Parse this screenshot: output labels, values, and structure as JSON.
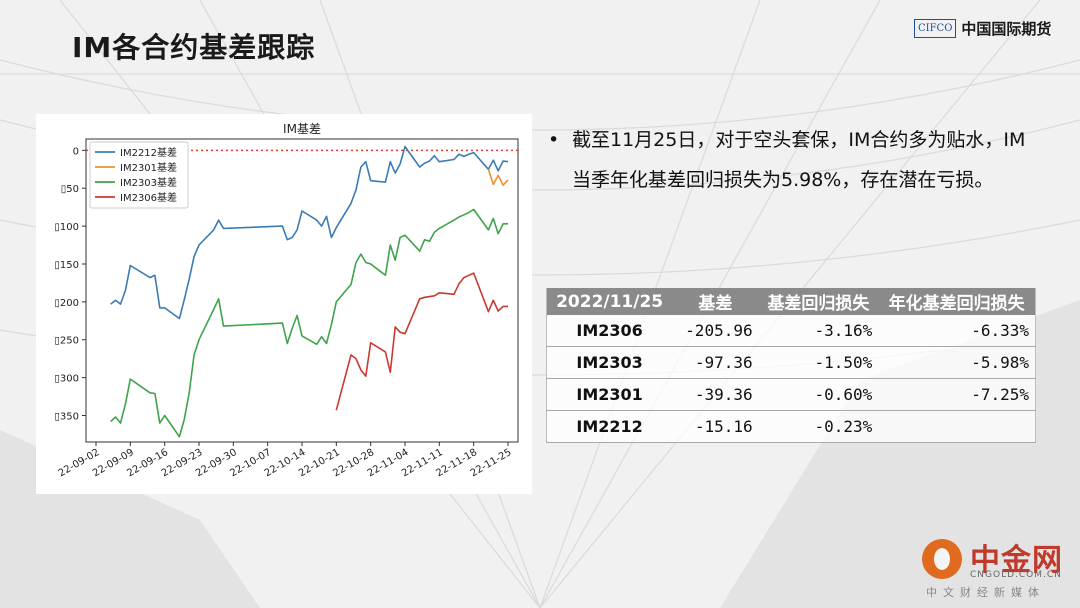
{
  "slide": {
    "title": "IM各合约基差跟踪",
    "logo_box": "CIFCO",
    "logo_text": "中国国际期货",
    "bullet_text": "截至11月25日，对于空头套保，IM合约多为贴水，IM当季年化基差回归损失为5.98%，存在潜在亏损。",
    "bullet_marker": "•"
  },
  "table": {
    "headers": [
      "2022/11/25",
      "基差",
      "基差回归损失",
      "年化基差回归损失"
    ],
    "rows": [
      [
        "IM2306",
        "-205.96",
        "-3.16%",
        "-6.33%"
      ],
      [
        "IM2303",
        "-97.36",
        "-1.50%",
        "-5.98%"
      ],
      [
        "IM2301",
        "-39.36",
        "-0.60%",
        "-7.25%"
      ],
      [
        "IM2212",
        "-15.16",
        "-0.23%",
        ""
      ]
    ]
  },
  "watermark": {
    "title": "中金网",
    "url": "CNGOLD.COM.CN",
    "subtitle": "中文财经新媒体"
  },
  "chart_data": {
    "type": "line",
    "title": "IM基差",
    "xlabel": "",
    "ylabel": "",
    "ylim": [
      -385,
      15
    ],
    "yticks": [
      0,
      -50,
      -100,
      -150,
      -200,
      -250,
      -300,
      -350
    ],
    "ytick_labels": [
      "0",
      "▯50",
      "▯100",
      "▯150",
      "▯200",
      "▯250",
      "▯300",
      "▯350"
    ],
    "xticks": [
      "22-09-02",
      "22-09-09",
      "22-09-16",
      "22-09-23",
      "22-09-30",
      "22-10-07",
      "22-10-14",
      "22-10-21",
      "22-10-28",
      "22-11-04",
      "22-11-11",
      "22-11-18",
      "22-11-25"
    ],
    "xlim": [
      "2022-09-02",
      "2022-11-25"
    ],
    "reference_line": {
      "y": 0,
      "color": "#d9432b",
      "style": "dotted"
    },
    "legend": {
      "position": "top-left"
    },
    "grid": false,
    "series": [
      {
        "name": "IM2212基差",
        "color": "#3b7bb4",
        "x": [
          "2022-09-05",
          "2022-09-06",
          "2022-09-07",
          "2022-09-08",
          "2022-09-09",
          "2022-09-13",
          "2022-09-14",
          "2022-09-15",
          "2022-09-16",
          "2022-09-19",
          "2022-09-20",
          "2022-09-21",
          "2022-09-22",
          "2022-09-23",
          "2022-09-26",
          "2022-09-27",
          "2022-09-28",
          "2022-10-10",
          "2022-10-11",
          "2022-10-12",
          "2022-10-13",
          "2022-10-14",
          "2022-10-17",
          "2022-10-18",
          "2022-10-19",
          "2022-10-20",
          "2022-10-21",
          "2022-10-24",
          "2022-10-25",
          "2022-10-26",
          "2022-10-27",
          "2022-10-28",
          "2022-10-31",
          "2022-11-01",
          "2022-11-02",
          "2022-11-03",
          "2022-11-04",
          "2022-11-07",
          "2022-11-08",
          "2022-11-09",
          "2022-11-10",
          "2022-11-11",
          "2022-11-14",
          "2022-11-15",
          "2022-11-16",
          "2022-11-17",
          "2022-11-18",
          "2022-11-21",
          "2022-11-22",
          "2022-11-23",
          "2022-11-24",
          "2022-11-25"
        ],
        "values": [
          -203,
          -198,
          -203,
          -185,
          -152,
          -168,
          -165,
          -208,
          -208,
          -222,
          -197,
          -170,
          -140,
          -125,
          -105,
          -92,
          -103,
          -100,
          -118,
          -115,
          -105,
          -80,
          -92,
          -100,
          -87,
          -115,
          -102,
          -70,
          -52,
          -22,
          -15,
          -40,
          -42,
          -15,
          -30,
          -18,
          5,
          -22,
          -17,
          -14,
          -7,
          -15,
          -12,
          -5,
          -8,
          -5,
          -3,
          -25,
          -13,
          -27,
          -14,
          -15
        ]
      },
      {
        "name": "IM2301基差",
        "color": "#f0902c",
        "x": [
          "2022-11-21",
          "2022-11-22",
          "2022-11-23",
          "2022-11-24",
          "2022-11-25"
        ],
        "values": [
          -25,
          -45,
          -33,
          -46,
          -39
        ]
      },
      {
        "name": "IM2303基差",
        "color": "#3fa34a",
        "x": [
          "2022-09-05",
          "2022-09-06",
          "2022-09-07",
          "2022-09-08",
          "2022-09-09",
          "2022-09-13",
          "2022-09-14",
          "2022-09-15",
          "2022-09-16",
          "2022-09-19",
          "2022-09-20",
          "2022-09-21",
          "2022-09-22",
          "2022-09-23",
          "2022-09-26",
          "2022-09-27",
          "2022-09-28",
          "2022-10-10",
          "2022-10-11",
          "2022-10-12",
          "2022-10-13",
          "2022-10-14",
          "2022-10-17",
          "2022-10-18",
          "2022-10-19",
          "2022-10-20",
          "2022-10-21",
          "2022-10-24",
          "2022-10-25",
          "2022-10-26",
          "2022-10-27",
          "2022-10-28",
          "2022-10-31",
          "2022-11-01",
          "2022-11-02",
          "2022-11-03",
          "2022-11-04",
          "2022-11-07",
          "2022-11-08",
          "2022-11-09",
          "2022-11-10",
          "2022-11-11",
          "2022-11-14",
          "2022-11-15",
          "2022-11-16",
          "2022-11-17",
          "2022-11-18",
          "2022-11-21",
          "2022-11-22",
          "2022-11-23",
          "2022-11-24",
          "2022-11-25"
        ],
        "values": [
          -358,
          -352,
          -360,
          -335,
          -302,
          -320,
          -321,
          -360,
          -350,
          -378,
          -355,
          -320,
          -270,
          -250,
          -210,
          -196,
          -232,
          -228,
          -255,
          -235,
          -218,
          -245,
          -256,
          -246,
          -255,
          -230,
          -200,
          -177,
          -148,
          -137,
          -148,
          -150,
          -165,
          -125,
          -145,
          -115,
          -112,
          -133,
          -118,
          -120,
          -108,
          -103,
          -92,
          -88,
          -85,
          -82,
          -78,
          -105,
          -90,
          -110,
          -97,
          -97
        ]
      },
      {
        "name": "IM2306基差",
        "color": "#c93a2f",
        "x": [
          "2022-10-21",
          "2022-10-24",
          "2022-10-25",
          "2022-10-26",
          "2022-10-27",
          "2022-10-28",
          "2022-10-31",
          "2022-11-01",
          "2022-11-02",
          "2022-11-03",
          "2022-11-04",
          "2022-11-07",
          "2022-11-08",
          "2022-11-09",
          "2022-11-10",
          "2022-11-11",
          "2022-11-14",
          "2022-11-15",
          "2022-11-16",
          "2022-11-17",
          "2022-11-18",
          "2022-11-21",
          "2022-11-22",
          "2022-11-23",
          "2022-11-24",
          "2022-11-25"
        ],
        "values": [
          -343,
          -270,
          -275,
          -290,
          -298,
          -254,
          -266,
          -293,
          -233,
          -240,
          -242,
          -196,
          -194,
          -193,
          -192,
          -188,
          -190,
          -176,
          -168,
          -165,
          -162,
          -213,
          -198,
          -212,
          -206,
          -206
        ]
      }
    ]
  }
}
